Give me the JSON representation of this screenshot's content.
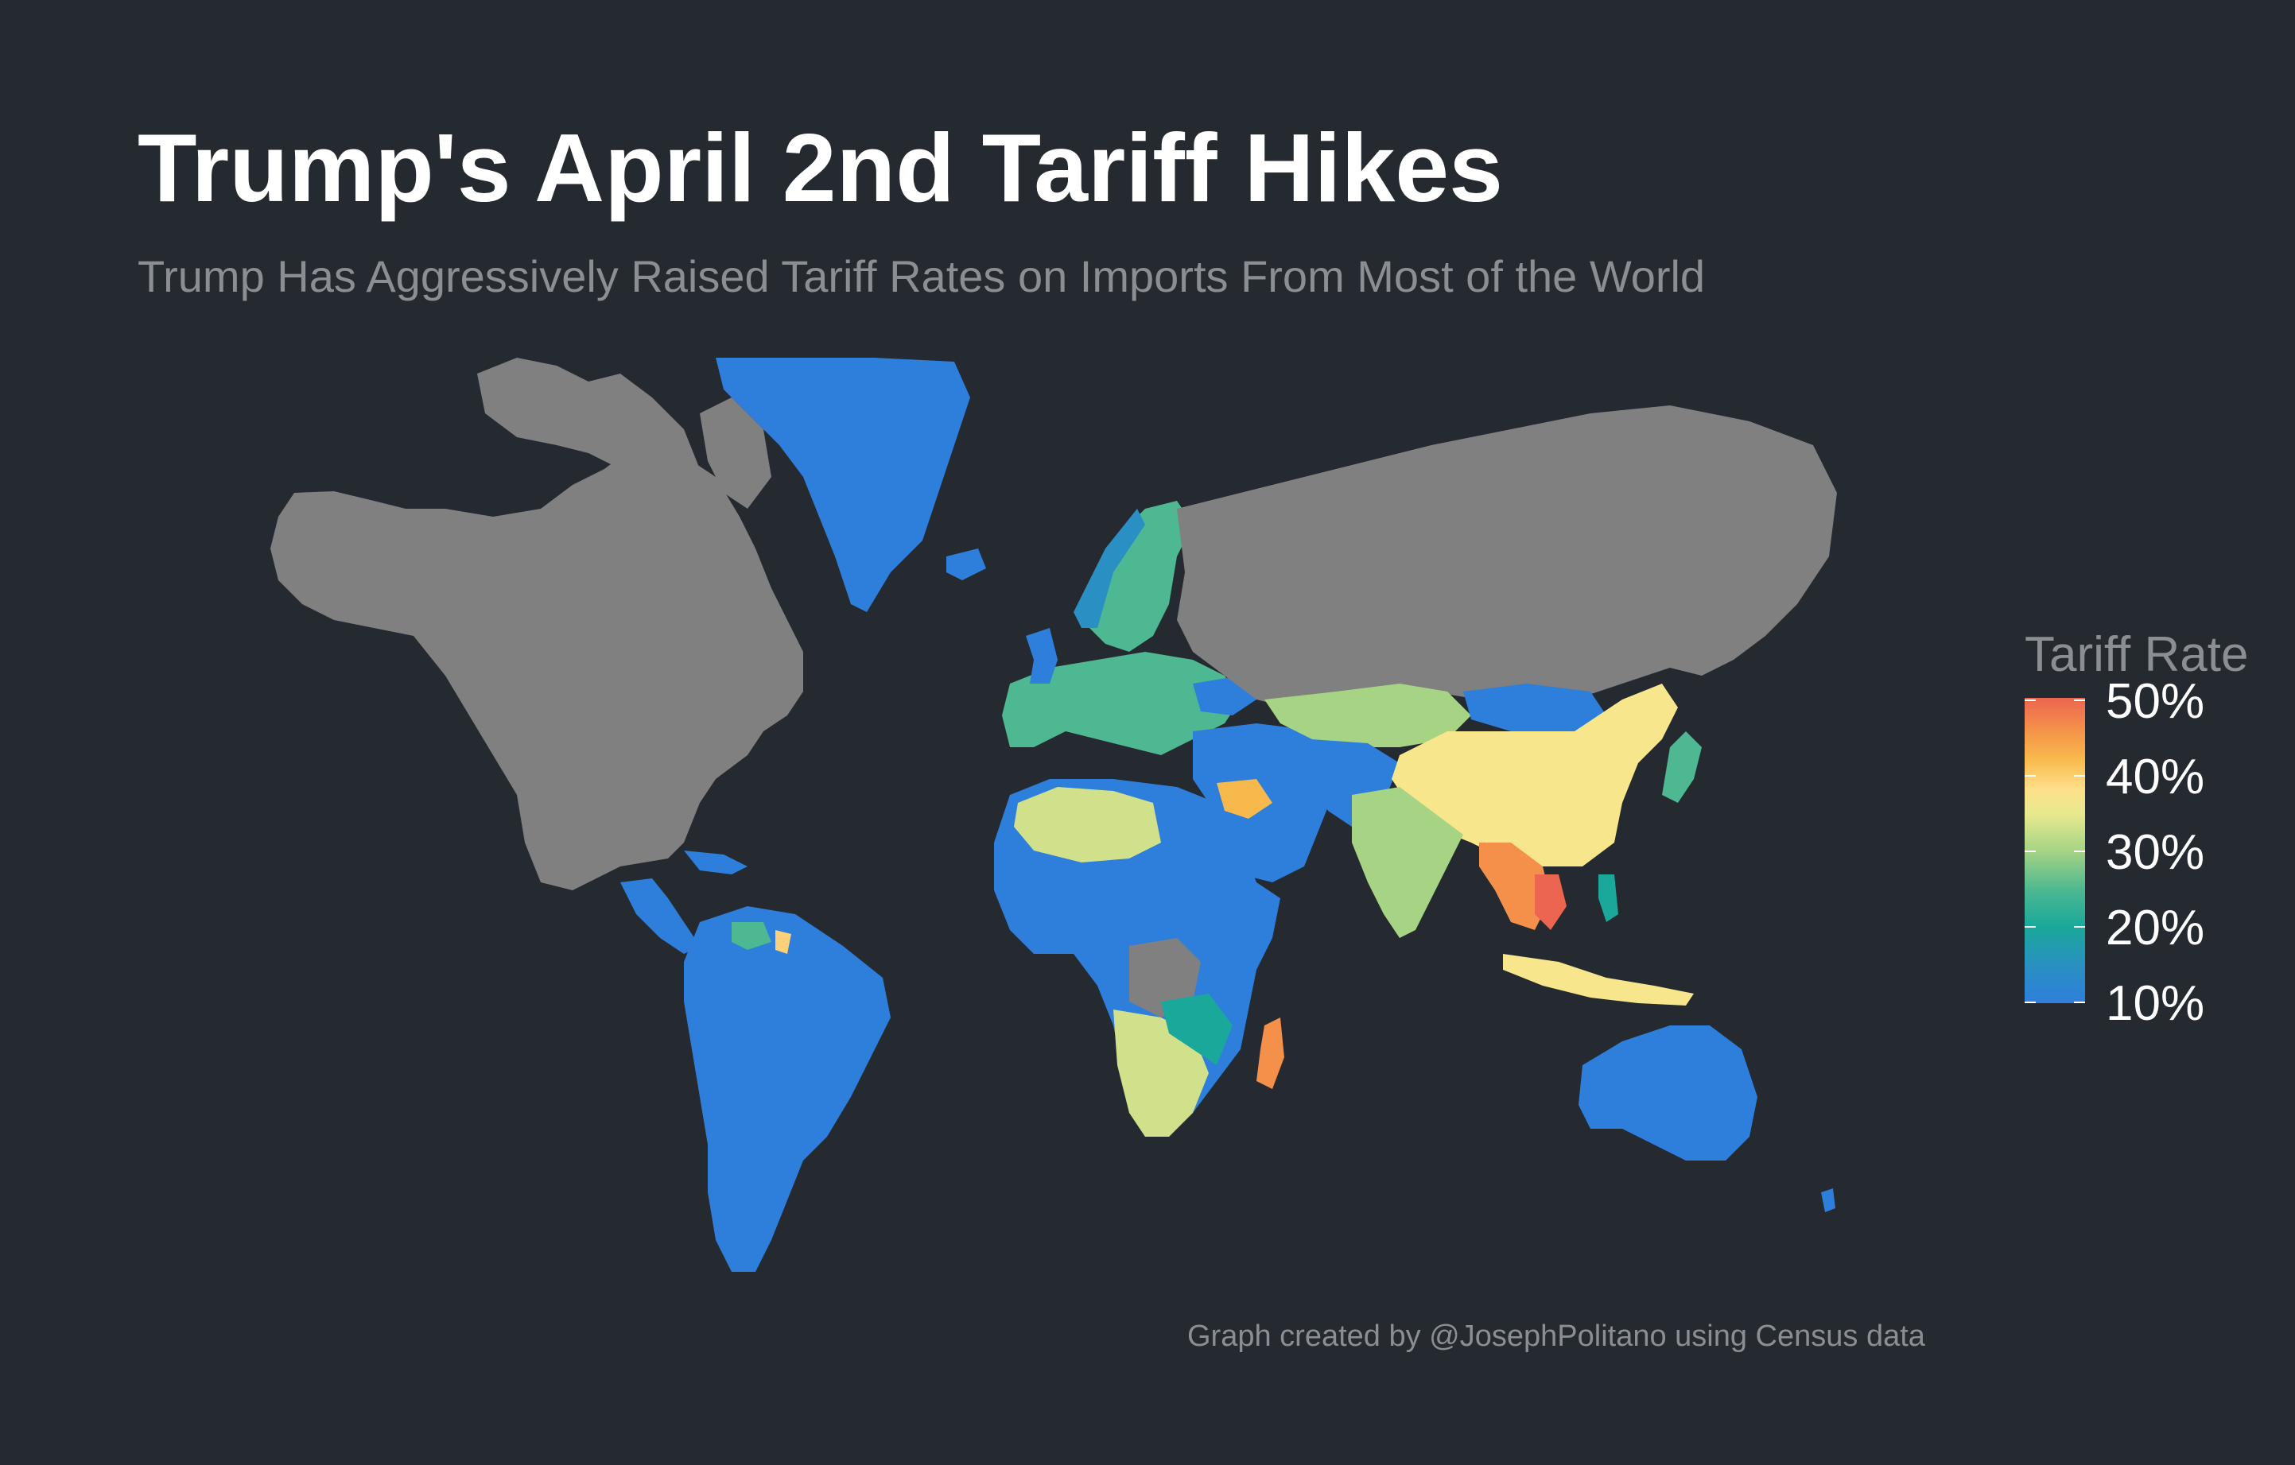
{
  "title": "Trump's April 2nd Tariff Hikes",
  "subtitle": "Trump Has Aggressively Raised Tariff Rates on Imports From Most of the World",
  "legend": {
    "title": "Tariff Rate",
    "labels": [
      "50%",
      "40%",
      "30%",
      "20%",
      "10%"
    ],
    "values": [
      50,
      40,
      30,
      20,
      10
    ],
    "range": [
      10,
      50
    ],
    "colors": {
      "10": "#2e7fdc",
      "15": "#1aa89a",
      "20": "#4db891",
      "25": "#a6d484",
      "30": "#f8e68c",
      "35": "#fdd17a",
      "40": "#f8b94c",
      "45": "#f4904a",
      "50": "#ec6550",
      "no_data": "#808080"
    }
  },
  "credit": "Graph created by @JosephPolitano using Census data"
}
